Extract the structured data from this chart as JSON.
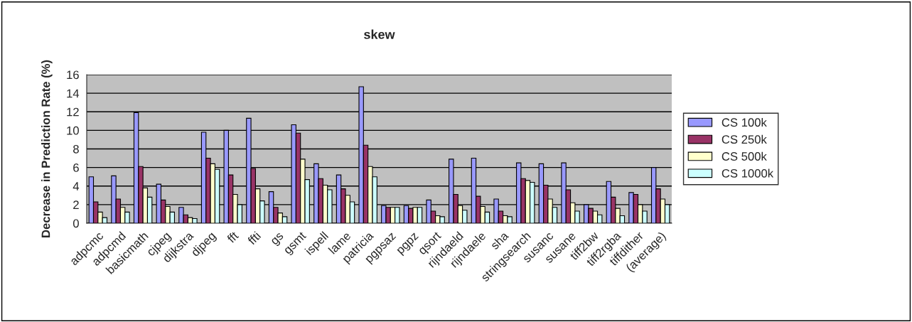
{
  "chart_data": {
    "type": "bar",
    "title": "skew",
    "ylabel": "Decrease in Prediction Rate (%)",
    "categories": [
      "adpcmc",
      "adpcmd",
      "basicmath",
      "cjpeg",
      "dijkstra",
      "djpeg",
      "fft",
      "ffti",
      "gs",
      "gsmt",
      "ispell",
      "lame",
      "patricia",
      "pgpsaz",
      "pgpz",
      "qsort",
      "rijndaeld",
      "rijndaele",
      "sha",
      "stringsearch",
      "susanc",
      "susane",
      "tiff2bw",
      "tiff2rgba",
      "tiffdither",
      "(average)"
    ],
    "series": [
      {
        "name": "CS 100k",
        "color": "#9999ff",
        "values": [
          5,
          5.1,
          11.9,
          4.2,
          1.7,
          9.8,
          10,
          11.3,
          3.4,
          10.6,
          6.4,
          5.2,
          14.7,
          1.9,
          1.9,
          2.5,
          6.9,
          7,
          2.6,
          6.5,
          6.4,
          6.5,
          2,
          4.5,
          3.3,
          6
        ]
      },
      {
        "name": "CS 250k",
        "color": "#993366",
        "values": [
          2.3,
          2.6,
          6.1,
          2.5,
          0.9,
          7,
          5.2,
          5.9,
          1.7,
          9.7,
          4.8,
          3.7,
          8.4,
          1.7,
          1.6,
          1.3,
          3.1,
          2.9,
          1.3,
          4.8,
          4.1,
          3.6,
          1.6,
          2.8,
          3.1,
          3.7
        ]
      },
      {
        "name": "CS 500k",
        "color": "#ffffcc",
        "values": [
          1.2,
          1.7,
          3.8,
          1.8,
          0.6,
          6.4,
          3.1,
          3.7,
          1.1,
          6.9,
          4.1,
          3,
          6.1,
          1.7,
          1.7,
          0.8,
          1.9,
          1.8,
          0.8,
          4.6,
          2.6,
          2.2,
          1.3,
          1.6,
          2,
          2.6
        ]
      },
      {
        "name": "CS 1000k",
        "color": "#ccffff",
        "values": [
          0.6,
          1.2,
          2.8,
          1.2,
          0.5,
          5.8,
          2,
          2.4,
          0.7,
          4.7,
          3.6,
          2.3,
          5,
          1.7,
          1.7,
          0.7,
          1.4,
          1.2,
          0.7,
          4.4,
          1.7,
          1.3,
          0.9,
          0.8,
          1.3,
          2
        ]
      }
    ],
    "ylim": [
      0,
      16
    ],
    "yticks": [
      0,
      2,
      4,
      6,
      8,
      10,
      12,
      14,
      16
    ],
    "grid": "y",
    "legend": "right"
  }
}
